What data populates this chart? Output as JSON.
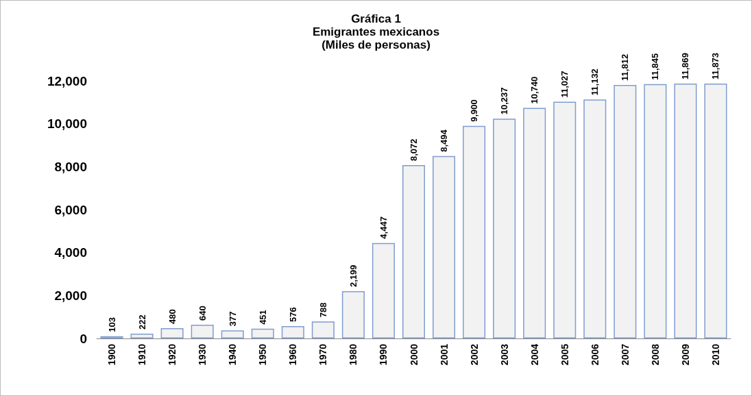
{
  "chart_data": {
    "type": "bar",
    "title": "Gráfica 1\nEmigrantes mexicanos\n(Miles de personas)",
    "categories": [
      "1900",
      "1910",
      "1920",
      "1930",
      "1940",
      "1950",
      "1960",
      "1970",
      "1980",
      "1990",
      "2000",
      "2001",
      "2002",
      "2003",
      "2004",
      "2005",
      "2006",
      "2007",
      "2008",
      "2009",
      "2010"
    ],
    "values": [
      103,
      222,
      480,
      640,
      377,
      451,
      576,
      788,
      2199,
      4447,
      8072,
      8494,
      9900,
      10237,
      10740,
      11027,
      11132,
      11812,
      11845,
      11869,
      11873
    ],
    "color": "#f2f2f2",
    "ylim": [
      0,
      12000
    ],
    "yticks": [
      {
        "value": 0,
        "label": "0"
      },
      {
        "value": 2000,
        "label": "2,000"
      },
      {
        "value": 4000,
        "label": "4,000"
      },
      {
        "value": 6000,
        "label": "6,000"
      },
      {
        "value": 8000,
        "label": "8,000"
      },
      {
        "value": 10000,
        "label": "10,000"
      },
      {
        "value": 12000,
        "label": "12,000"
      }
    ],
    "value_labels": [
      "103",
      "222",
      "480",
      "640",
      "377",
      "451",
      "576",
      "788",
      "2,199",
      "4,447",
      "8,072",
      "8,494",
      "9,900",
      "10,237",
      "10,740",
      "11,027",
      "11,132",
      "11,812",
      "11,845",
      "11,869",
      "11,873"
    ],
    "grid": false
  }
}
